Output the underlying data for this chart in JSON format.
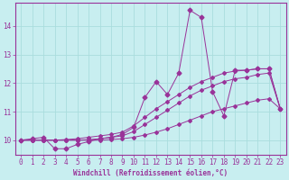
{
  "xlabel": "Windchill (Refroidissement éolien,°C)",
  "ylabel": "",
  "background_color": "#c8eef0",
  "line_color": "#993399",
  "grid_color": "#aadddd",
  "x": [
    0,
    1,
    2,
    3,
    4,
    5,
    6,
    7,
    8,
    9,
    10,
    11,
    12,
    13,
    14,
    15,
    16,
    17,
    18,
    19,
    20,
    21,
    22,
    23
  ],
  "series1": [
    10.0,
    10.05,
    10.1,
    9.7,
    9.7,
    9.85,
    9.95,
    10.05,
    10.1,
    10.2,
    10.45,
    11.5,
    12.05,
    11.6,
    12.35,
    14.55,
    14.3,
    11.7,
    10.85,
    12.45,
    12.45,
    12.5,
    12.5,
    11.1
  ],
  "series2": [
    10.0,
    10.0,
    10.0,
    10.0,
    10.02,
    10.05,
    10.1,
    10.15,
    10.2,
    10.28,
    10.5,
    10.8,
    11.1,
    11.35,
    11.6,
    11.85,
    12.05,
    12.2,
    12.35,
    12.42,
    12.45,
    12.5,
    12.5,
    11.1
  ],
  "series3": [
    10.0,
    10.0,
    10.0,
    10.0,
    10.0,
    10.0,
    10.02,
    10.05,
    10.1,
    10.15,
    10.3,
    10.55,
    10.8,
    11.05,
    11.3,
    11.55,
    11.75,
    11.9,
    12.05,
    12.15,
    12.2,
    12.3,
    12.35,
    11.1
  ],
  "series4": [
    10.0,
    10.0,
    10.0,
    10.0,
    10.0,
    10.0,
    10.0,
    10.0,
    10.02,
    10.05,
    10.1,
    10.18,
    10.28,
    10.4,
    10.55,
    10.7,
    10.85,
    11.0,
    11.1,
    11.2,
    11.3,
    11.4,
    11.45,
    11.1
  ],
  "xlim": [
    -0.5,
    23.5
  ],
  "ylim": [
    9.5,
    14.8
  ],
  "yticks": [
    10,
    11,
    12,
    13,
    14
  ],
  "xticks": [
    0,
    1,
    2,
    3,
    4,
    5,
    6,
    7,
    8,
    9,
    10,
    11,
    12,
    13,
    14,
    15,
    16,
    17,
    18,
    19,
    20,
    21,
    22,
    23
  ],
  "tick_fontsize": 5.5,
  "xlabel_fontsize": 5.5
}
